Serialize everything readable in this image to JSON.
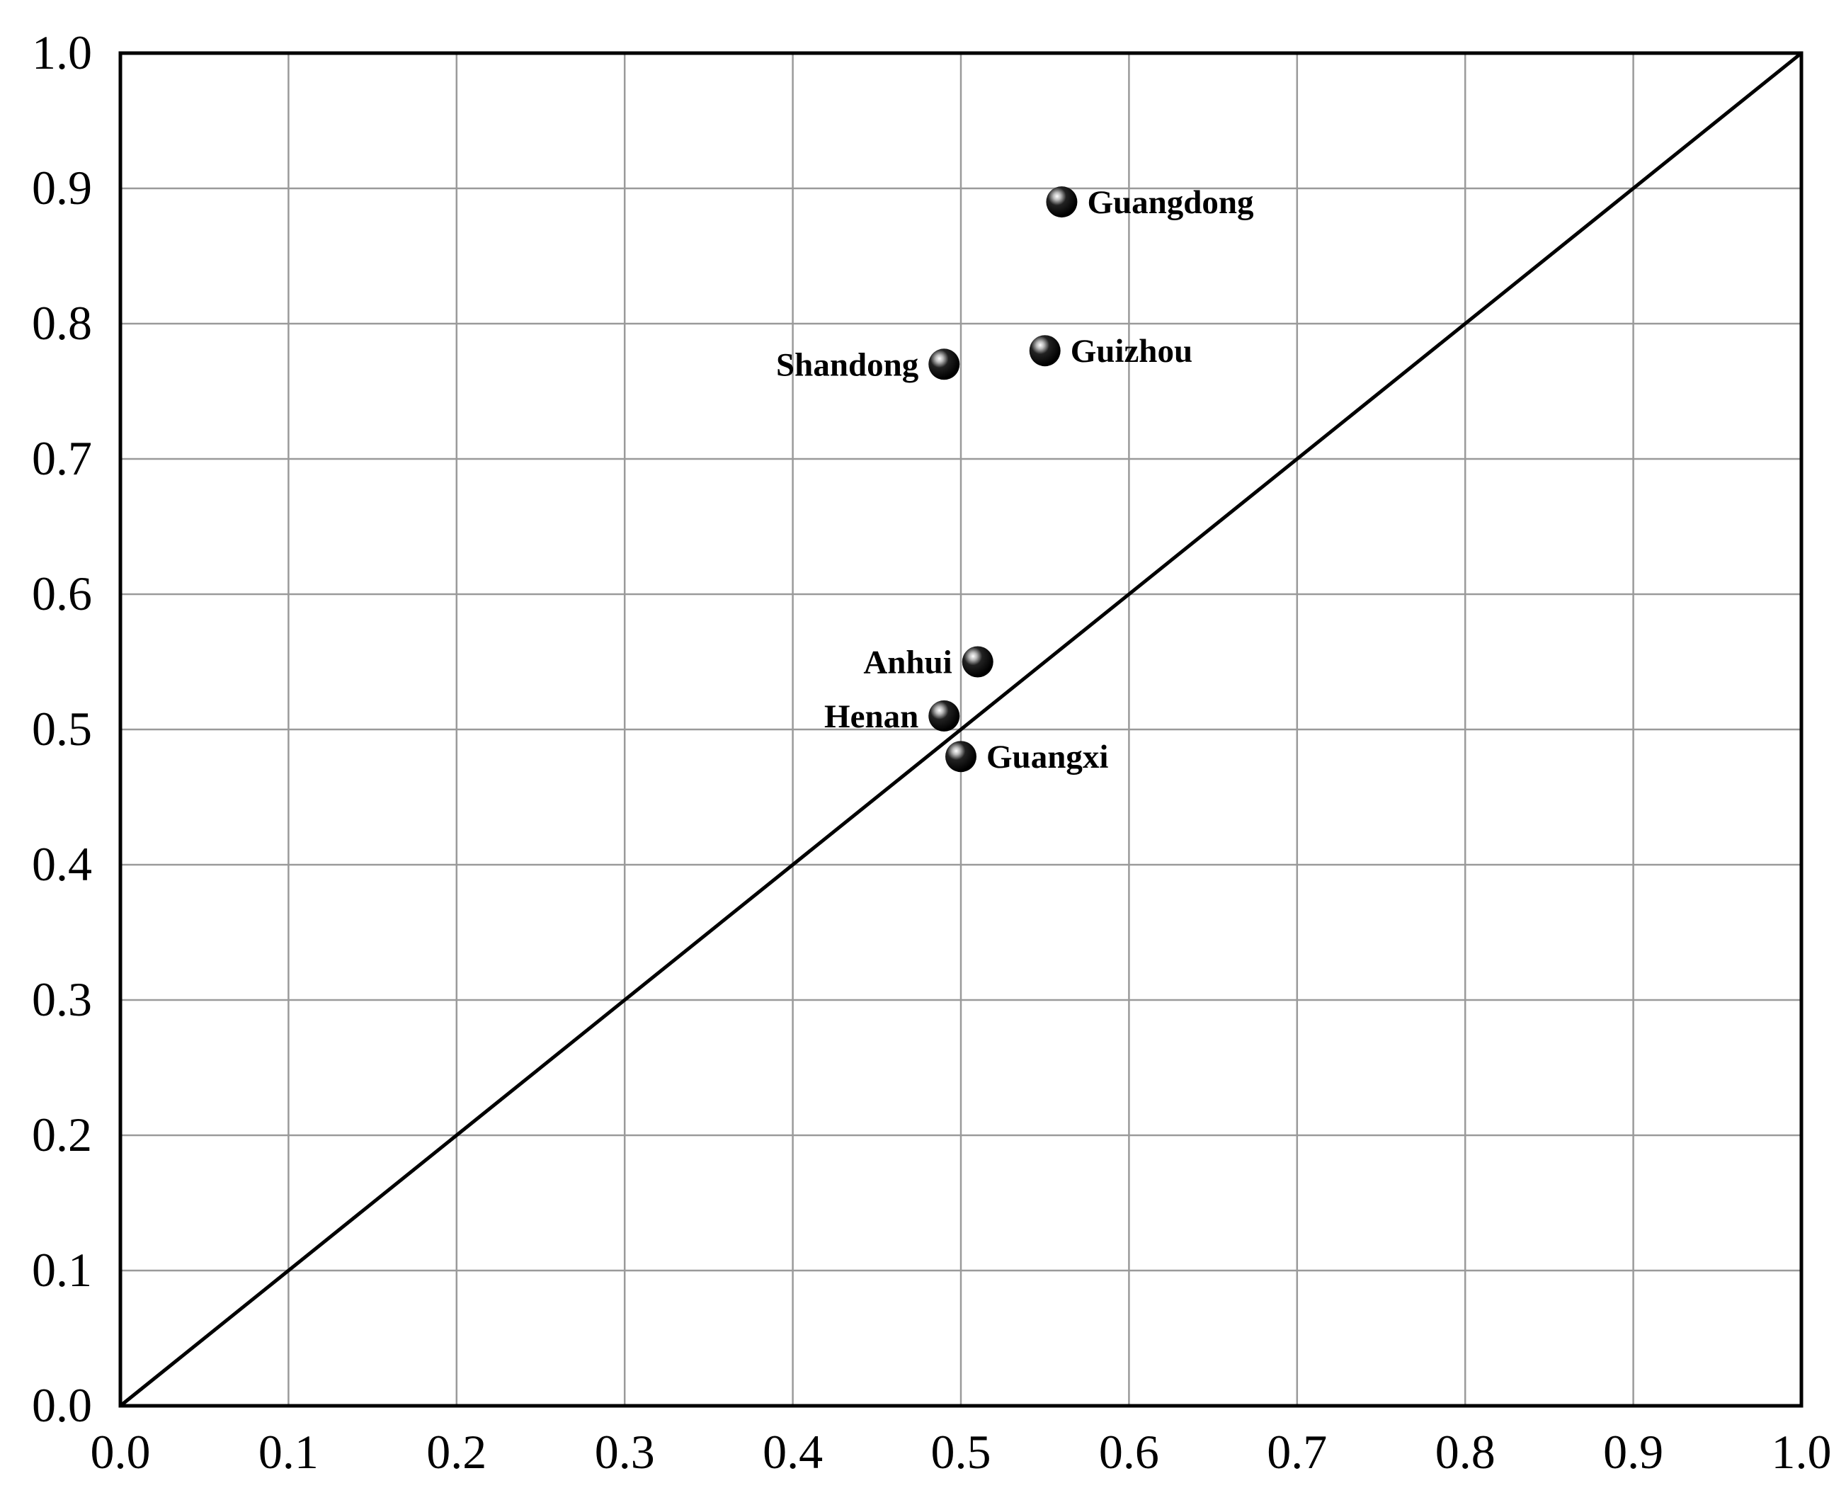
{
  "chart_data": {
    "type": "scatter",
    "title": "",
    "xlabel": "",
    "ylabel": "",
    "xlim": [
      0,
      1
    ],
    "ylim": [
      0,
      1
    ],
    "grid": true,
    "x_ticks": [
      "0.0",
      "0.1",
      "0.2",
      "0.3",
      "0.4",
      "0.5",
      "0.6",
      "0.7",
      "0.8",
      "0.9",
      "1.0"
    ],
    "y_ticks": [
      "0.0",
      "0.1",
      "0.2",
      "0.3",
      "0.4",
      "0.5",
      "0.6",
      "0.7",
      "0.8",
      "0.9",
      "1.0"
    ],
    "reference_line": {
      "from": [
        0,
        0
      ],
      "to": [
        1,
        1
      ]
    },
    "points": [
      {
        "label": "Guangdong",
        "x": 0.56,
        "y": 0.89,
        "label_position": "right"
      },
      {
        "label": "Guizhou",
        "x": 0.55,
        "y": 0.78,
        "label_position": "right"
      },
      {
        "label": "Shandong",
        "x": 0.49,
        "y": 0.77,
        "label_position": "left"
      },
      {
        "label": "Anhui",
        "x": 0.51,
        "y": 0.55,
        "label_position": "left"
      },
      {
        "label": "Henan",
        "x": 0.49,
        "y": 0.51,
        "label_position": "left"
      },
      {
        "label": "Guangxi",
        "x": 0.5,
        "y": 0.48,
        "label_position": "right"
      }
    ]
  }
}
